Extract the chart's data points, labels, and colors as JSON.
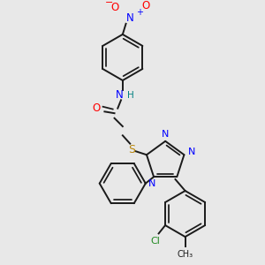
{
  "bg_color": "#e8e8e8",
  "bond_color": "#1a1a1a",
  "N_color": "#0000ff",
  "O_color": "#ff0000",
  "S_color": "#b8860b",
  "Cl_color": "#228b22",
  "H_color": "#008080",
  "lw": 1.4,
  "dbo": 0.055,
  "figsize": [
    3.0,
    3.0
  ],
  "dpi": 100,
  "xlim": [
    0.0,
    3.0
  ],
  "ylim": [
    0.0,
    3.0
  ]
}
